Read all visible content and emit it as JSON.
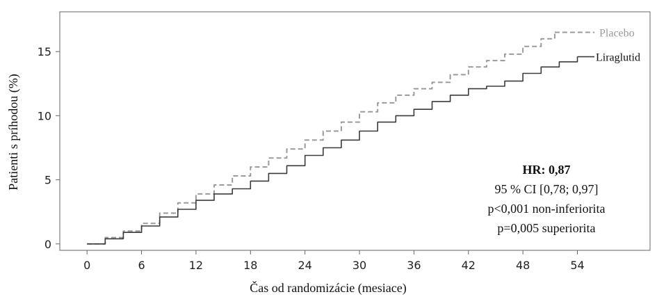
{
  "chart_data": {
    "type": "line",
    "title": "",
    "xlabel": "Čas od randomizácie (mesiace)",
    "ylabel": "Patienti s príhodou (%)",
    "xlim": [
      -3,
      62
    ],
    "ylim": [
      -0.5,
      18.1
    ],
    "xticks": [
      0,
      6,
      12,
      18,
      24,
      30,
      36,
      42,
      48,
      54
    ],
    "xtick_labels": [
      "0",
      "6",
      "12",
      "18",
      "24",
      "30",
      "36",
      "42",
      "48",
      "54"
    ],
    "yticks": [
      0,
      5,
      10,
      15
    ],
    "ytick_labels": [
      "0",
      "5",
      "10",
      "15"
    ],
    "grid": false,
    "legend": "line-end labels",
    "series": [
      {
        "name": "Placebo",
        "style": "dashed",
        "color": "#9a9a9a",
        "x": [
          0,
          2,
          4,
          6,
          8,
          10,
          12,
          14,
          16,
          18,
          20,
          22,
          24,
          26,
          28,
          30,
          32,
          34,
          36,
          38,
          40,
          42,
          44,
          46,
          48,
          50,
          51.5
        ],
        "y": [
          0,
          0.5,
          1.0,
          1.6,
          2.4,
          3.2,
          3.9,
          4.6,
          5.3,
          6.0,
          6.7,
          7.4,
          8.1,
          8.8,
          9.5,
          10.3,
          11.0,
          11.6,
          12.1,
          12.6,
          13.2,
          13.8,
          14.3,
          14.8,
          15.4,
          16.0,
          16.5
        ]
      },
      {
        "name": "Liraglutid",
        "style": "solid",
        "color": "#3a3a3a",
        "x": [
          0,
          2,
          4,
          6,
          8,
          10,
          12,
          14,
          16,
          18,
          20,
          22,
          24,
          26,
          28,
          30,
          32,
          34,
          36,
          38,
          40,
          42,
          44,
          46,
          48,
          50,
          52,
          54
        ],
        "y": [
          0,
          0.4,
          0.9,
          1.4,
          2.1,
          2.7,
          3.4,
          3.9,
          4.3,
          4.9,
          5.5,
          6.1,
          6.9,
          7.5,
          8.1,
          8.8,
          9.5,
          10.0,
          10.5,
          11.1,
          11.6,
          12.1,
          12.3,
          12.7,
          13.3,
          13.8,
          14.2,
          14.6
        ]
      }
    ],
    "annotation": {
      "hr": "HR: 0,87",
      "ci": "95 % CI [0,78; 0,97]",
      "p_noninf": "p<0,001 non-inferiorita",
      "p_sup": "p=0,005 superiorita"
    }
  }
}
